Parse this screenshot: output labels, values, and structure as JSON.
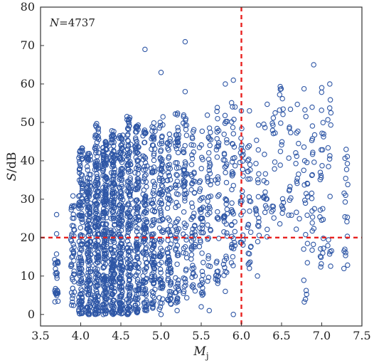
{
  "chart_data": {
    "type": "scatter",
    "annotation": {
      "prefix": "N",
      "text": "=4737"
    },
    "xlabel": {
      "main": "M",
      "sub": "j"
    },
    "ylabel": {
      "main": "S",
      "unit": "/dB"
    },
    "xlim": [
      3.5,
      7.5
    ],
    "ylim": [
      -3,
      80
    ],
    "x_ticks": [
      "3.5",
      "4.0",
      "4.5",
      "5.0",
      "5.5",
      "6.0",
      "6.5",
      "7.0",
      "7.5"
    ],
    "y_ticks": [
      "0",
      "10",
      "20",
      "30",
      "40",
      "50",
      "60",
      "70",
      "80"
    ],
    "reference_lines": {
      "vertical_x": 6.0,
      "horizontal_y": 20
    },
    "colors": {
      "points": "#2f57a6",
      "reference": "#e8211f"
    },
    "grid": false,
    "marker": "open-circle",
    "columns": [
      {
        "x": 3.7,
        "ymin": 3,
        "ymax": 16,
        "n": 28
      },
      {
        "x": 3.9,
        "ymin": 2,
        "ymax": 31,
        "n": 45
      },
      {
        "x": 4.0,
        "ymin": 0,
        "ymax": 44,
        "n": 130
      },
      {
        "x": 4.1,
        "ymin": 0,
        "ymax": 42,
        "n": 150
      },
      {
        "x": 4.2,
        "ymin": 0,
        "ymax": 50,
        "n": 180
      },
      {
        "x": 4.3,
        "ymin": 0,
        "ymax": 45,
        "n": 190
      },
      {
        "x": 4.4,
        "ymin": 0,
        "ymax": 48,
        "n": 180
      },
      {
        "x": 4.5,
        "ymin": 0,
        "ymax": 47,
        "n": 170
      },
      {
        "x": 4.6,
        "ymin": 0,
        "ymax": 52,
        "n": 150
      },
      {
        "x": 4.7,
        "ymin": 0,
        "ymax": 50,
        "n": 130
      },
      {
        "x": 4.8,
        "ymin": 1,
        "ymax": 48,
        "n": 110
      },
      {
        "x": 4.9,
        "ymin": 1,
        "ymax": 50,
        "n": 100
      },
      {
        "x": 5.0,
        "ymin": 1,
        "ymax": 52,
        "n": 90
      },
      {
        "x": 5.1,
        "ymin": 2,
        "ymax": 49,
        "n": 80
      },
      {
        "x": 5.2,
        "ymin": 3,
        "ymax": 55,
        "n": 70
      },
      {
        "x": 5.3,
        "ymin": 4,
        "ymax": 52,
        "n": 60
      },
      {
        "x": 5.4,
        "ymin": 4,
        "ymax": 50,
        "n": 55
      },
      {
        "x": 5.5,
        "ymin": 5,
        "ymax": 48,
        "n": 45
      },
      {
        "x": 5.6,
        "ymin": 6,
        "ymax": 52,
        "n": 40
      },
      {
        "x": 5.7,
        "ymin": 8,
        "ymax": 54,
        "n": 35
      },
      {
        "x": 5.8,
        "ymin": 10,
        "ymax": 52,
        "n": 40
      },
      {
        "x": 5.9,
        "ymin": 12,
        "ymax": 56,
        "n": 40
      },
      {
        "x": 6.0,
        "ymin": 14,
        "ymax": 52,
        "n": 25
      },
      {
        "x": 6.1,
        "ymin": 13,
        "ymax": 48,
        "n": 25
      },
      {
        "x": 6.2,
        "ymin": 18,
        "ymax": 50,
        "n": 18
      },
      {
        "x": 6.3,
        "ymin": 20,
        "ymax": 55,
        "n": 18
      },
      {
        "x": 6.4,
        "ymin": 22,
        "ymax": 58,
        "n": 14
      },
      {
        "x": 6.5,
        "ymin": 16,
        "ymax": 60,
        "n": 20
      },
      {
        "x": 6.6,
        "ymin": 25,
        "ymax": 55,
        "n": 12
      },
      {
        "x": 6.7,
        "ymin": 22,
        "ymax": 57,
        "n": 14
      },
      {
        "x": 6.8,
        "ymin": 3,
        "ymax": 60,
        "n": 24
      },
      {
        "x": 6.9,
        "ymin": 16,
        "ymax": 62,
        "n": 20
      },
      {
        "x": 7.0,
        "ymin": 6,
        "ymax": 60,
        "n": 26
      },
      {
        "x": 7.1,
        "ymin": 12,
        "ymax": 58,
        "n": 16
      },
      {
        "x": 7.3,
        "ymin": 11,
        "ymax": 50,
        "n": 20
      }
    ],
    "outliers": [
      {
        "x": 3.7,
        "y": 26
      },
      {
        "x": 3.7,
        "y": 21
      },
      {
        "x": 4.8,
        "y": 69
      },
      {
        "x": 5.0,
        "y": 63
      },
      {
        "x": 5.3,
        "y": 71
      },
      {
        "x": 5.3,
        "y": 58
      },
      {
        "x": 5.8,
        "y": 60
      },
      {
        "x": 5.9,
        "y": 61
      },
      {
        "x": 6.0,
        "y": 53
      },
      {
        "x": 6.1,
        "y": 53
      },
      {
        "x": 6.9,
        "y": 65
      },
      {
        "x": 7.0,
        "y": 59
      },
      {
        "x": 7.1,
        "y": 60
      },
      {
        "x": 5.9,
        "y": 0
      },
      {
        "x": 5.6,
        "y": 1
      },
      {
        "x": 5.5,
        "y": 2
      },
      {
        "x": 5.0,
        "y": 0
      },
      {
        "x": 4.9,
        "y": 2
      },
      {
        "x": 5.2,
        "y": 1
      },
      {
        "x": 5.8,
        "y": 6
      },
      {
        "x": 5.7,
        "y": 9
      },
      {
        "x": 5.4,
        "y": 7
      },
      {
        "x": 6.1,
        "y": 12
      },
      {
        "x": 6.2,
        "y": 10
      }
    ]
  }
}
